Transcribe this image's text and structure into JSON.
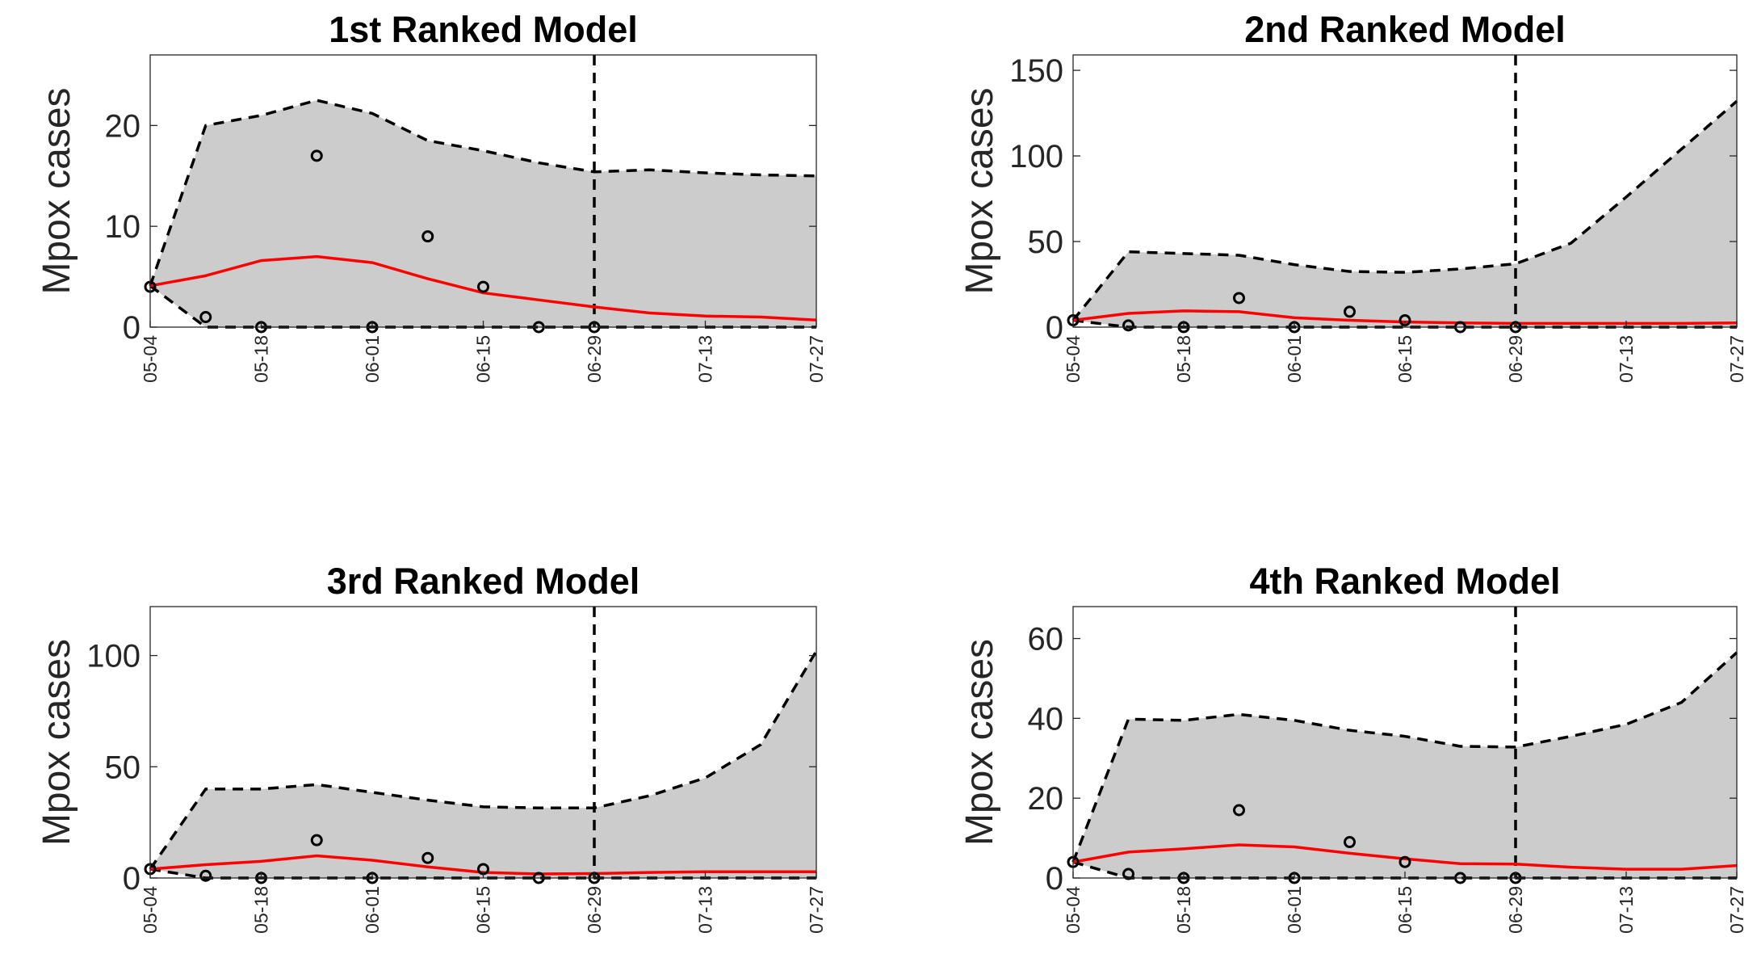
{
  "chart_data": [
    {
      "type": "line",
      "title": "1st Ranked Model",
      "ylabel": "Mpox cases",
      "xlabel": "",
      "x": [
        "05-04",
        "05-11",
        "05-18",
        "05-25",
        "06-01",
        "06-08",
        "06-15",
        "06-22",
        "06-29",
        "07-06",
        "07-13",
        "07-20",
        "07-27"
      ],
      "x_tick_labels": [
        "05-04",
        "05-18",
        "06-01",
        "06-15",
        "06-29",
        "07-13",
        "07-27"
      ],
      "ylim": [
        0,
        27
      ],
      "y_ticks": [
        0,
        10,
        20
      ],
      "series": [
        {
          "role": "median",
          "color": "#ff0000",
          "values": [
            4.1,
            5.1,
            6.6,
            7.0,
            6.4,
            4.8,
            3.4,
            2.7,
            2.0,
            1.4,
            1.1,
            1.0,
            0.7
          ]
        },
        {
          "role": "upper-bound",
          "color": "#000000",
          "values": [
            4.1,
            20.0,
            21.0,
            22.5,
            21.2,
            18.5,
            17.5,
            16.3,
            15.4,
            15.6,
            15.3,
            15.1,
            15.0
          ]
        },
        {
          "role": "lower-bound",
          "color": "#000000",
          "values": [
            4.1,
            0,
            0,
            0,
            0,
            0,
            0,
            0,
            0,
            0,
            0,
            0,
            0
          ]
        }
      ],
      "observed": [
        {
          "x": "05-04",
          "y": 4
        },
        {
          "x": "05-11",
          "y": 1
        },
        {
          "x": "05-18",
          "y": 0
        },
        {
          "x": "05-25",
          "y": 17
        },
        {
          "x": "06-01",
          "y": 0
        },
        {
          "x": "06-08",
          "y": 9
        },
        {
          "x": "06-15",
          "y": 4
        },
        {
          "x": "06-22",
          "y": 0
        },
        {
          "x": "06-29",
          "y": 0
        }
      ],
      "vline_x": "06-29",
      "band_color": "#cccccc",
      "grid": false
    },
    {
      "type": "line",
      "title": "2nd Ranked Model",
      "ylabel": "Mpox cases",
      "xlabel": "",
      "x": [
        "05-04",
        "05-11",
        "05-18",
        "05-25",
        "06-01",
        "06-08",
        "06-15",
        "06-22",
        "06-29",
        "07-06",
        "07-13",
        "07-20",
        "07-27"
      ],
      "x_tick_labels": [
        "05-04",
        "05-18",
        "06-01",
        "06-15",
        "06-29",
        "07-13",
        "07-27"
      ],
      "ylim": [
        0,
        159
      ],
      "y_ticks": [
        0,
        50,
        100,
        150
      ],
      "series": [
        {
          "role": "median",
          "color": "#ff0000",
          "values": [
            4,
            8,
            9.5,
            9,
            5.5,
            4,
            3,
            2.5,
            2.2,
            2.2,
            2.2,
            2.2,
            2.5
          ]
        },
        {
          "role": "upper-bound",
          "color": "#000000",
          "values": [
            4,
            44,
            43,
            42,
            36.5,
            32.5,
            32,
            34,
            37,
            49,
            76,
            104,
            132
          ]
        },
        {
          "role": "lower-bound",
          "color": "#000000",
          "values": [
            4,
            0,
            0,
            0,
            0,
            0,
            0,
            0,
            0,
            0,
            0,
            0,
            0
          ]
        }
      ],
      "observed": [
        {
          "x": "05-04",
          "y": 4
        },
        {
          "x": "05-11",
          "y": 1
        },
        {
          "x": "05-18",
          "y": 0
        },
        {
          "x": "05-25",
          "y": 17
        },
        {
          "x": "06-01",
          "y": 0
        },
        {
          "x": "06-08",
          "y": 9
        },
        {
          "x": "06-15",
          "y": 4
        },
        {
          "x": "06-22",
          "y": 0
        },
        {
          "x": "06-29",
          "y": 0
        }
      ],
      "vline_x": "06-29",
      "band_color": "#cccccc",
      "grid": false
    },
    {
      "type": "line",
      "title": "3rd Ranked Model",
      "ylabel": "Mpox cases",
      "xlabel": "",
      "x": [
        "05-04",
        "05-11",
        "05-18",
        "05-25",
        "06-01",
        "06-08",
        "06-15",
        "06-22",
        "06-29",
        "07-06",
        "07-13",
        "07-20",
        "07-27"
      ],
      "x_tick_labels": [
        "05-04",
        "05-18",
        "06-01",
        "06-15",
        "06-29",
        "07-13",
        "07-27"
      ],
      "ylim": [
        0,
        122
      ],
      "y_ticks": [
        0,
        50,
        100
      ],
      "series": [
        {
          "role": "median",
          "color": "#ff0000",
          "values": [
            4,
            6,
            7.5,
            10,
            8,
            5,
            2.5,
            1.8,
            2,
            2.5,
            2.8,
            2.8,
            2.8
          ]
        },
        {
          "role": "upper-bound",
          "color": "#000000",
          "values": [
            4,
            40,
            40,
            42,
            38.5,
            35,
            32,
            31.5,
            31.5,
            37,
            45,
            60,
            102
          ]
        },
        {
          "role": "lower-bound",
          "color": "#000000",
          "values": [
            4,
            0,
            0,
            0,
            0,
            0,
            0,
            0,
            0,
            0,
            0,
            0,
            0
          ]
        }
      ],
      "observed": [
        {
          "x": "05-04",
          "y": 4
        },
        {
          "x": "05-11",
          "y": 1
        },
        {
          "x": "05-18",
          "y": 0
        },
        {
          "x": "05-25",
          "y": 17
        },
        {
          "x": "06-01",
          "y": 0
        },
        {
          "x": "06-08",
          "y": 9
        },
        {
          "x": "06-15",
          "y": 4
        },
        {
          "x": "06-22",
          "y": 0
        },
        {
          "x": "06-29",
          "y": 0
        }
      ],
      "vline_x": "06-29",
      "band_color": "#cccccc",
      "grid": false
    },
    {
      "type": "line",
      "title": "4th Ranked Model",
      "ylabel": "Mpox cases",
      "xlabel": "",
      "x": [
        "05-04",
        "05-11",
        "05-18",
        "05-25",
        "06-01",
        "06-08",
        "06-15",
        "06-22",
        "06-29",
        "07-06",
        "07-13",
        "07-20",
        "07-27"
      ],
      "x_tick_labels": [
        "05-04",
        "05-18",
        "06-01",
        "06-15",
        "06-29",
        "07-13",
        "07-27"
      ],
      "ylim": [
        0,
        68
      ],
      "y_ticks": [
        0,
        20,
        40,
        60
      ],
      "series": [
        {
          "role": "median",
          "color": "#ff0000",
          "values": [
            4,
            6.5,
            7.3,
            8.3,
            7.8,
            6.2,
            4.8,
            3.6,
            3.5,
            2.7,
            2.2,
            2.2,
            3.1
          ]
        },
        {
          "role": "upper-bound",
          "color": "#000000",
          "values": [
            4,
            39.8,
            39.5,
            41,
            39.5,
            37,
            35.5,
            33,
            32.8,
            35.5,
            38.5,
            44,
            56.5
          ]
        },
        {
          "role": "lower-bound",
          "color": "#000000",
          "values": [
            4,
            0,
            0,
            0,
            0,
            0,
            0,
            0,
            0,
            0,
            0,
            0,
            0
          ]
        }
      ],
      "observed": [
        {
          "x": "05-04",
          "y": 4
        },
        {
          "x": "05-11",
          "y": 1
        },
        {
          "x": "05-18",
          "y": 0
        },
        {
          "x": "05-25",
          "y": 17
        },
        {
          "x": "06-01",
          "y": 0
        },
        {
          "x": "06-08",
          "y": 9
        },
        {
          "x": "06-15",
          "y": 4
        },
        {
          "x": "06-22",
          "y": 0
        },
        {
          "x": "06-29",
          "y": 0
        }
      ],
      "vline_x": "06-29",
      "band_color": "#cccccc",
      "grid": false
    }
  ]
}
